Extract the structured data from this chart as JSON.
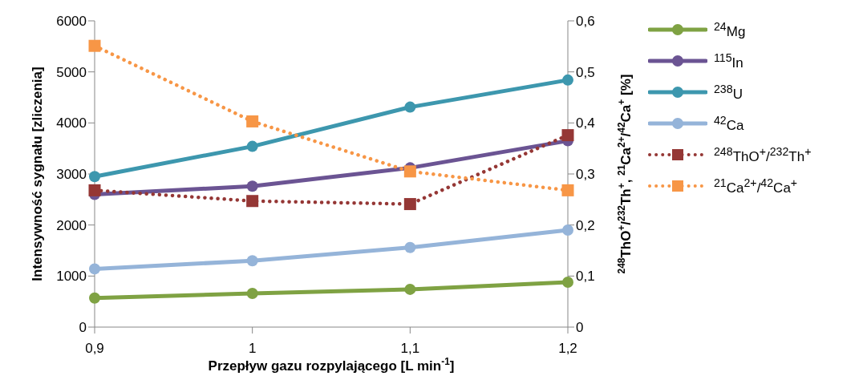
{
  "chart_data": {
    "type": "line",
    "xlabel": "Przepływ gazu rozpylającego [L min$^{-1}$]",
    "ylabel": "Intensywność sygnału [zliczenia]",
    "y2label": "$^{248}$ThO$^{+}$/$^{232}$Th$^{+}$, $^{21}$Ca$^{2+}$/$^{42}$Ca$^{+}$ [%]",
    "categories": [
      "0,9",
      "1",
      "1,1",
      "1,2"
    ],
    "ylim": [
      0,
      6000
    ],
    "yticks": [
      0,
      1000,
      2000,
      3000,
      4000,
      5000,
      6000
    ],
    "y2lim": [
      0,
      0.6
    ],
    "y2ticks": [
      0,
      {
        "value": 0.1,
        "label": "0,1"
      },
      {
        "value": 0.2,
        "label": "0,2"
      },
      {
        "value": 0.3,
        "label": "0,3"
      },
      {
        "value": 0.4,
        "label": "0,4"
      },
      {
        "value": 0.5,
        "label": "0,5"
      },
      {
        "value": 0.6,
        "label": "0,6"
      }
    ],
    "grid": false,
    "legend": "right",
    "series": [
      {
        "name": "$^{24}$Mg",
        "color": "#7fa243",
        "marker": "circle",
        "line_style": "solid",
        "values": [
          570,
          660,
          740,
          880
        ]
      },
      {
        "name": "$^{115}$In",
        "color": "#6b5493",
        "marker": "circle",
        "line_style": "solid",
        "values": [
          2600,
          2760,
          3120,
          3650
        ]
      },
      {
        "name": "$^{238}$U",
        "color": "#3d97ae",
        "marker": "circle",
        "line_style": "solid",
        "values": [
          2950,
          3540,
          4310,
          4840
        ]
      },
      {
        "name": "$^{42}$Ca",
        "color": "#95b4d9",
        "marker": "circle",
        "line_style": "solid",
        "values": [
          1140,
          1300,
          1560,
          1900
        ]
      },
      {
        "name": "$^{248}$ThO$^{+}$/$^{232}$Th$^{+}$",
        "color": "#953735",
        "marker": "square",
        "line_style": "dotted",
        "axis": "y2",
        "values": [
          0.268,
          0.247,
          0.241,
          0.376
        ]
      },
      {
        "name": "$^{21}$Ca$^{2+}$/$^{42}$Ca$^{+}$",
        "color": "#f79646",
        "marker": "square",
        "line_style": "dotted",
        "axis": "y2",
        "values": [
          0.551,
          0.403,
          0.305,
          0.268
        ]
      }
    ]
  }
}
